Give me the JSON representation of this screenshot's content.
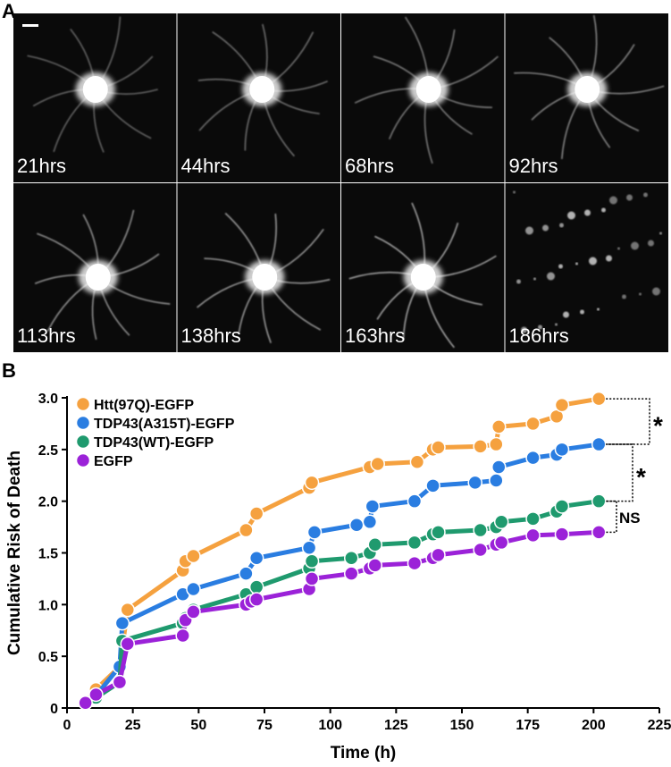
{
  "panels": {
    "a_label": "A",
    "b_label": "B",
    "images": [
      "21hrs",
      "44hrs",
      "68hrs",
      "92hrs",
      "113hrs",
      "138hrs",
      "163hrs",
      "186hrs"
    ]
  },
  "chart_data": {
    "type": "line",
    "x_label": "Time (h)",
    "y_label": "Cumulative Risk of Death",
    "xlim": [
      0,
      225
    ],
    "xticks": [
      0,
      25,
      50,
      75,
      100,
      125,
      150,
      175,
      200,
      225
    ],
    "ylim": [
      0,
      3
    ],
    "yticks": [
      0,
      0.5,
      {
        "value": 1,
        "label": "1.0"
      },
      1.5,
      {
        "value": 2,
        "label": "2.0"
      },
      2.5,
      {
        "value": 3,
        "label": "3.0"
      }
    ],
    "legend": "top-left",
    "annotations": [
      "*",
      "*",
      "NS"
    ],
    "series": [
      {
        "name": "Htt(97Q)-EGFP",
        "color": "#f5a13f",
        "x": [
          7,
          11,
          20,
          23,
          44,
          45,
          48,
          68,
          72,
          92,
          93,
          115,
          118,
          133,
          139,
          141,
          157,
          163,
          164,
          177,
          186,
          188,
          202
        ],
        "values": [
          0.05,
          0.18,
          0.4,
          0.95,
          1.33,
          1.42,
          1.47,
          1.72,
          1.88,
          2.13,
          2.18,
          2.33,
          2.36,
          2.38,
          2.5,
          2.52,
          2.53,
          2.55,
          2.72,
          2.75,
          2.82,
          2.93,
          2.99
        ]
      },
      {
        "name": "TDP43(A315T)-EGFP",
        "color": "#2a7de1",
        "x": [
          7,
          11,
          20,
          21,
          44,
          48,
          68,
          72,
          92,
          94,
          110,
          115,
          116,
          132,
          139,
          155,
          163,
          164,
          177,
          186,
          188,
          202
        ],
        "values": [
          0.05,
          0.12,
          0.4,
          0.82,
          1.1,
          1.15,
          1.3,
          1.45,
          1.55,
          1.7,
          1.77,
          1.8,
          1.95,
          2.0,
          2.15,
          2.18,
          2.2,
          2.33,
          2.42,
          2.45,
          2.5,
          2.55
        ]
      },
      {
        "name": "TDP43(WT)-EGFP",
        "color": "#1f9a6e",
        "x": [
          7,
          11,
          20,
          21,
          44,
          45,
          48,
          68,
          72,
          92,
          93,
          108,
          115,
          117,
          132,
          139,
          141,
          157,
          163,
          165,
          177,
          186,
          188,
          202
        ],
        "values": [
          0.05,
          0.1,
          0.25,
          0.65,
          0.82,
          0.87,
          0.95,
          1.1,
          1.17,
          1.35,
          1.42,
          1.45,
          1.5,
          1.58,
          1.6,
          1.68,
          1.7,
          1.72,
          1.75,
          1.8,
          1.83,
          1.9,
          1.95,
          2.0
        ]
      },
      {
        "name": "EGFP",
        "color": "#9b22d8",
        "x": [
          7,
          11,
          20,
          23,
          44,
          45,
          48,
          68,
          70,
          72,
          92,
          93,
          108,
          115,
          117,
          132,
          139,
          141,
          157,
          163,
          165,
          177,
          188,
          202
        ],
        "values": [
          0.05,
          0.13,
          0.25,
          0.62,
          0.7,
          0.85,
          0.93,
          1.0,
          1.03,
          1.05,
          1.15,
          1.25,
          1.3,
          1.35,
          1.38,
          1.4,
          1.45,
          1.48,
          1.53,
          1.58,
          1.6,
          1.67,
          1.68,
          1.7
        ]
      }
    ]
  }
}
